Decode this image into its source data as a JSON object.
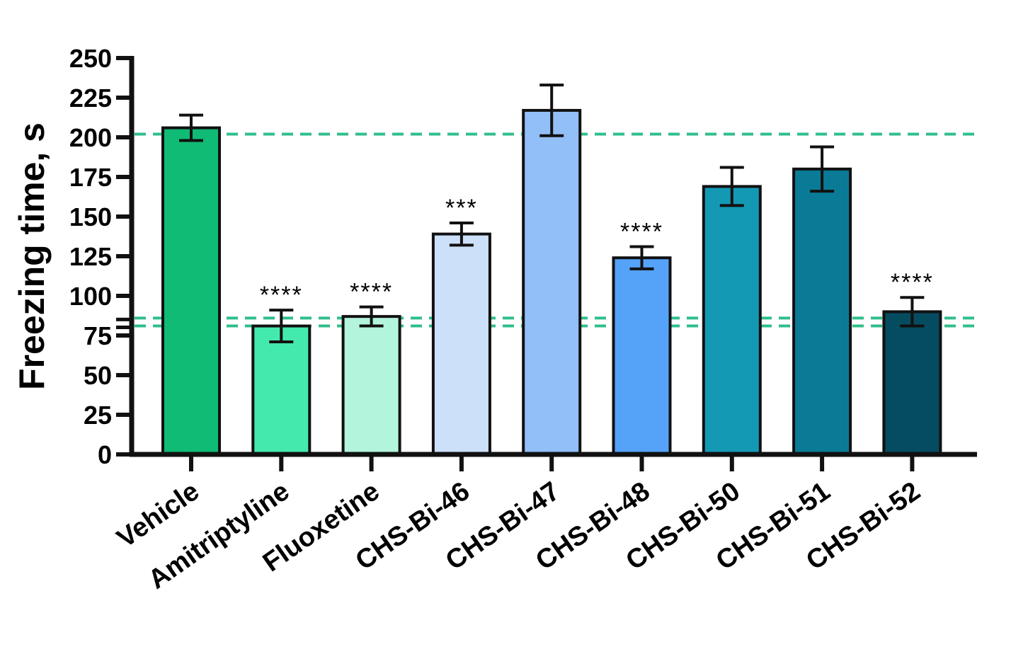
{
  "chart_data": {
    "type": "bar",
    "title": "",
    "xlabel": "",
    "ylabel": "Freezing time, s",
    "ylim": [
      0,
      250
    ],
    "yticks": [
      0,
      25,
      50,
      75,
      100,
      125,
      150,
      175,
      200,
      225,
      250
    ],
    "categories": [
      "Vehicle",
      "Amitriptyline",
      "Fluoxetine",
      "CHS-Bi-46",
      "CHS-Bi-47",
      "CHS-Bi-48",
      "CHS-Bi-50",
      "CHS-Bi-51",
      "CHS-Bi-52"
    ],
    "values": [
      206,
      81,
      87,
      139,
      217,
      124,
      169,
      180,
      90
    ],
    "error": [
      8,
      10,
      6,
      7,
      16,
      7,
      12,
      14,
      9
    ],
    "significance": [
      "",
      "****",
      "****",
      "***",
      "",
      "****",
      "",
      "",
      "****"
    ],
    "colors": [
      "#10bb75",
      "#44eaad",
      "#b3f5dc",
      "#cde0fa",
      "#92bff8",
      "#55a2f9",
      "#1499b5",
      "#0a7b96",
      "#064c60"
    ],
    "reference_lines": [
      {
        "value": 202,
        "color": "#2fbf8a",
        "style": "dashed"
      },
      {
        "value": 86,
        "color": "#2fbf8a",
        "style": "dashed"
      },
      {
        "value": 81,
        "color": "#2fbf8a",
        "style": "dashed"
      }
    ],
    "grid": false,
    "legend": "none"
  }
}
